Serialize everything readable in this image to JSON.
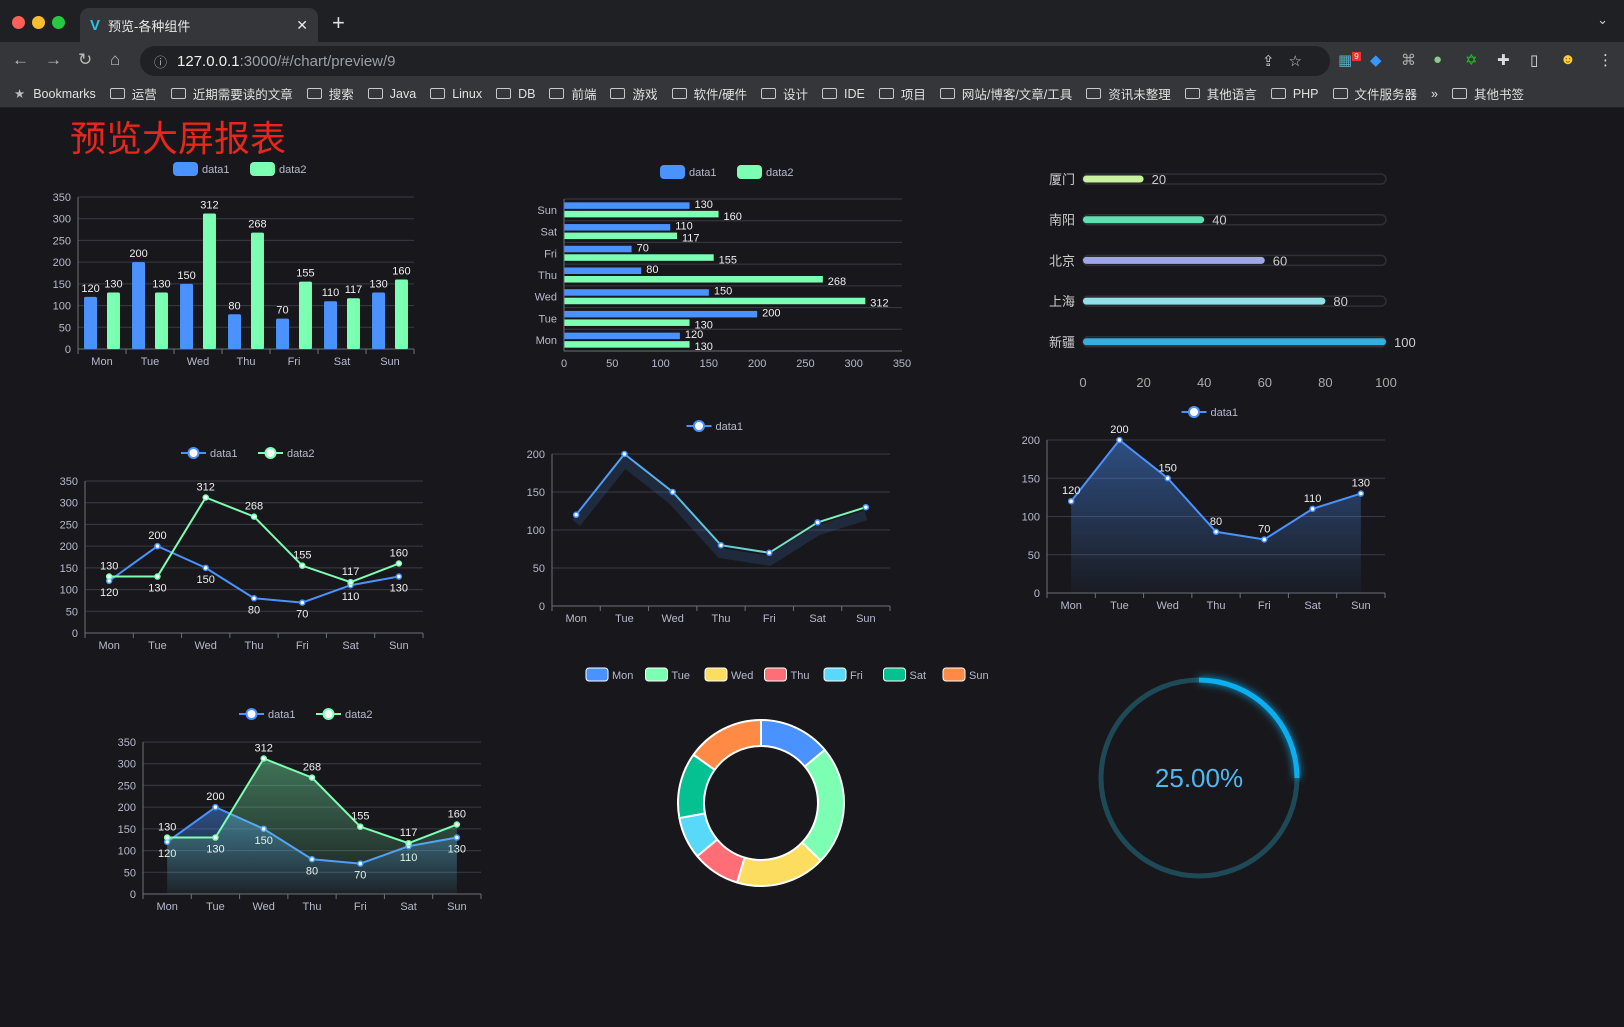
{
  "browser": {
    "tab_title": "预览-各种组件",
    "url_host": "127.0.0.1",
    "url_rest": ":3000/#/chart/preview/9",
    "extension_badge": "9",
    "bookmarks_label": "Bookmarks",
    "bookmark_folders": [
      "运营",
      "近期需要读的文章",
      "搜索",
      "Java",
      "Linux",
      "DB",
      "前端",
      "游戏",
      "软件/硬件",
      "设计",
      "IDE",
      "项目",
      "网站/博客/文章/工具",
      "资讯未整理",
      "其他语言",
      "PHP",
      "文件服务器"
    ],
    "more": "»",
    "other_bookmarks": "其他书签"
  },
  "page_title": "预览大屏报表",
  "colors": {
    "data1": "#4992ff",
    "data2": "#7cffb2",
    "title": "#e8261c",
    "gauge": "#0aaeef"
  },
  "chart_data": [
    {
      "type": "bar",
      "categories": [
        "Mon",
        "Tue",
        "Wed",
        "Thu",
        "Fri",
        "Sat",
        "Sun"
      ],
      "series": [
        {
          "name": "data1",
          "values": [
            120,
            200,
            150,
            80,
            70,
            110,
            130
          ]
        },
        {
          "name": "data2",
          "values": [
            130,
            130,
            312,
            268,
            155,
            117,
            160
          ]
        }
      ],
      "ylim": [
        0,
        350
      ],
      "yticks": [
        0,
        50,
        100,
        150,
        200,
        250,
        300,
        350
      ],
      "legend": "top",
      "grid": true
    },
    {
      "type": "bar",
      "orientation": "horizontal",
      "categories": [
        "Mon",
        "Tue",
        "Wed",
        "Thu",
        "Fri",
        "Sat",
        "Sun"
      ],
      "series": [
        {
          "name": "data1",
          "values": [
            120,
            200,
            150,
            80,
            70,
            110,
            130
          ]
        },
        {
          "name": "data2",
          "values": [
            130,
            130,
            312,
            268,
            155,
            117,
            160
          ]
        }
      ],
      "xlim": [
        0,
        350
      ],
      "xticks": [
        0,
        50,
        100,
        150,
        200,
        250,
        300,
        350
      ],
      "legend": "top",
      "grid": true
    },
    {
      "type": "bar",
      "orientation": "horizontal",
      "subtype": "progress",
      "categories": [
        "厦门",
        "南阳",
        "北京",
        "上海",
        "新疆"
      ],
      "values": [
        20,
        40,
        60,
        80,
        100
      ],
      "colors": [
        "#c8f2a0",
        "#5ee0b0",
        "#9ea8e6",
        "#8fe0e8",
        "#34b0e0"
      ],
      "xlim": [
        0,
        100
      ],
      "xticks": [
        0,
        20,
        40,
        60,
        80,
        100
      ]
    },
    {
      "type": "line",
      "categories": [
        "Mon",
        "Tue",
        "Wed",
        "Thu",
        "Fri",
        "Sat",
        "Sun"
      ],
      "series": [
        {
          "name": "data1",
          "values": [
            120,
            200,
            150,
            80,
            70,
            110,
            130
          ]
        },
        {
          "name": "data2",
          "values": [
            130,
            130,
            312,
            268,
            155,
            117,
            160
          ]
        }
      ],
      "ylim": [
        0,
        350
      ],
      "yticks": [
        0,
        50,
        100,
        150,
        200,
        250,
        300,
        350
      ],
      "legend": "top",
      "grid": true
    },
    {
      "type": "line",
      "categories": [
        "Mon",
        "Tue",
        "Wed",
        "Thu",
        "Fri",
        "Sat",
        "Sun"
      ],
      "series": [
        {
          "name": "data1",
          "values": [
            120,
            200,
            150,
            80,
            70,
            110,
            130
          ]
        }
      ],
      "ylim": [
        0,
        200
      ],
      "yticks": [
        0,
        50,
        100,
        150,
        200
      ],
      "legend": "top",
      "grid": true,
      "shadow": true
    },
    {
      "type": "area",
      "categories": [
        "Mon",
        "Tue",
        "Wed",
        "Thu",
        "Fri",
        "Sat",
        "Sun"
      ],
      "series": [
        {
          "name": "data1",
          "values": [
            120,
            200,
            150,
            80,
            70,
            110,
            130
          ]
        }
      ],
      "ylim": [
        0,
        200
      ],
      "yticks": [
        0,
        50,
        100,
        150,
        200
      ],
      "legend": "top",
      "grid": true
    },
    {
      "type": "area",
      "categories": [
        "Mon",
        "Tue",
        "Wed",
        "Thu",
        "Fri",
        "Sat",
        "Sun"
      ],
      "series": [
        {
          "name": "data1",
          "values": [
            120,
            200,
            150,
            80,
            70,
            110,
            130
          ]
        },
        {
          "name": "data2",
          "values": [
            130,
            130,
            312,
            268,
            155,
            117,
            160
          ]
        }
      ],
      "ylim": [
        0,
        350
      ],
      "yticks": [
        0,
        50,
        100,
        150,
        200,
        250,
        300,
        350
      ],
      "legend": "top",
      "grid": true
    },
    {
      "type": "pie",
      "subtype": "donut",
      "categories": [
        "Mon",
        "Tue",
        "Wed",
        "Thu",
        "Fri",
        "Sat",
        "Sun"
      ],
      "values": [
        120,
        200,
        150,
        80,
        70,
        110,
        130
      ],
      "colors": [
        "#4992ff",
        "#7cffb2",
        "#fddd60",
        "#ff6e76",
        "#58d9f9",
        "#05c091",
        "#ff8a45"
      ],
      "legend": "top"
    },
    {
      "type": "gauge",
      "value": 0.25,
      "label": "25.00%"
    }
  ]
}
